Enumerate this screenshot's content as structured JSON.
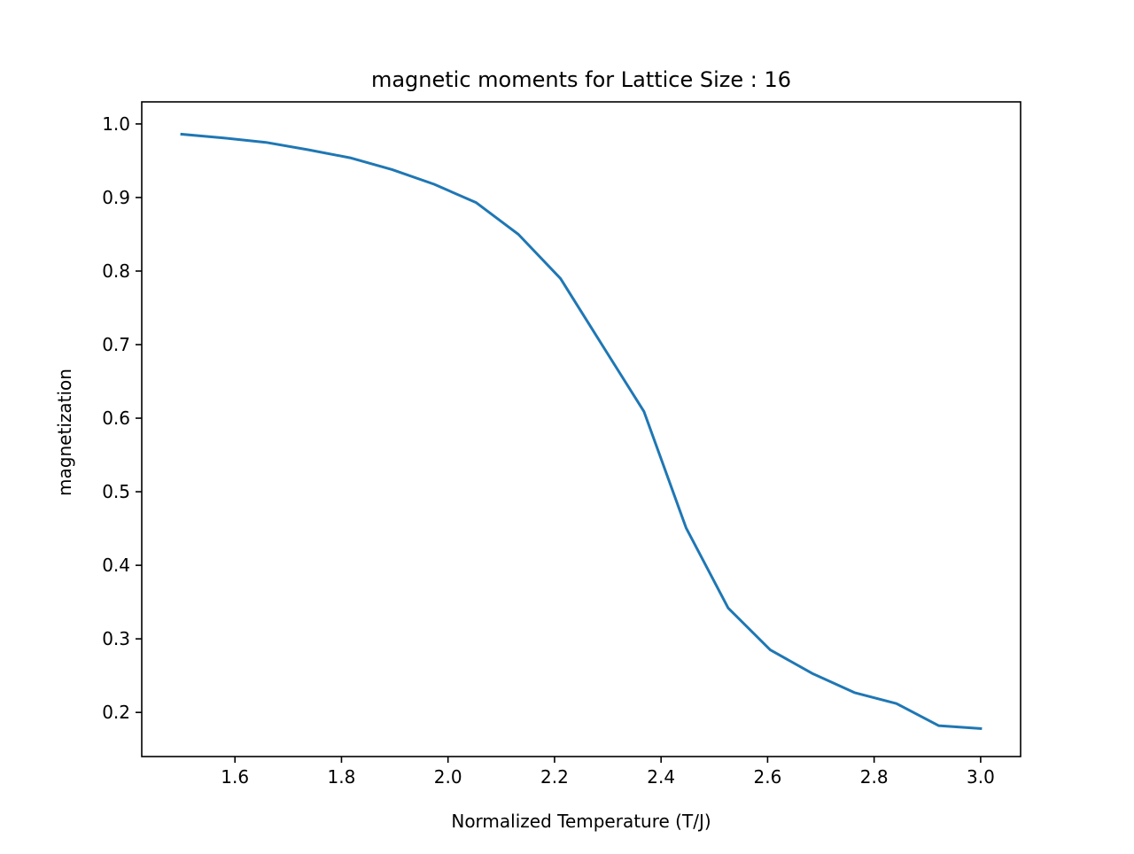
{
  "chart_data": {
    "type": "line",
    "title": "magnetic moments for Lattice Size : 16",
    "xlabel": "Normalized Temperature (T/J)",
    "ylabel": "magnetization",
    "xlim": [
      1.425,
      3.075
    ],
    "ylim": [
      0.14,
      1.03
    ],
    "xticks": [
      1.6,
      1.8,
      2.0,
      2.2,
      2.4,
      2.6,
      2.8,
      3.0
    ],
    "xtick_labels": [
      "1.6",
      "1.8",
      "2.0",
      "2.2",
      "2.4",
      "2.6",
      "2.8",
      "3.0"
    ],
    "yticks": [
      0.2,
      0.3,
      0.4,
      0.5,
      0.6,
      0.7,
      0.8,
      0.9,
      1.0
    ],
    "ytick_labels": [
      "0.2",
      "0.3",
      "0.4",
      "0.5",
      "0.6",
      "0.7",
      "0.8",
      "0.9",
      "1.0"
    ],
    "grid": false,
    "series": [
      {
        "color": "#1f77b4",
        "x": [
          1.5,
          1.579,
          1.658,
          1.737,
          1.816,
          1.895,
          1.974,
          2.053,
          2.132,
          2.211,
          2.289,
          2.368,
          2.447,
          2.526,
          2.605,
          2.684,
          2.763,
          2.842,
          2.921,
          3.0
        ],
        "y": [
          0.986,
          0.981,
          0.975,
          0.965,
          0.954,
          0.938,
          0.918,
          0.893,
          0.85,
          0.79,
          0.7,
          0.609,
          0.451,
          0.342,
          0.285,
          0.253,
          0.227,
          0.212,
          0.182,
          0.178
        ]
      }
    ]
  }
}
